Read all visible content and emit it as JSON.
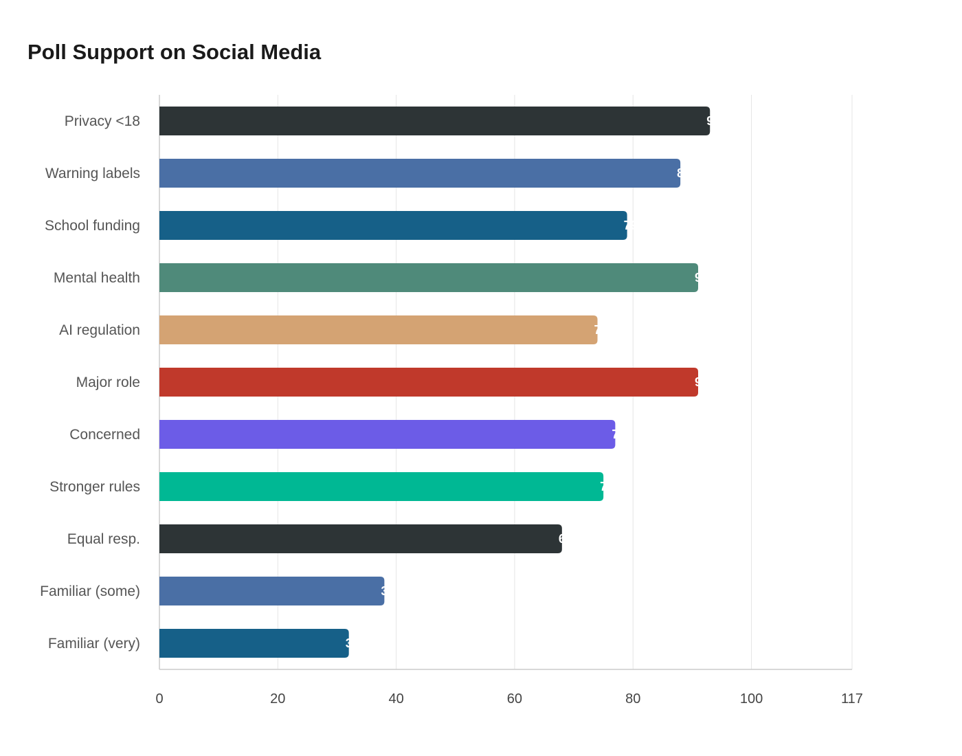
{
  "chart_data": {
    "type": "bar",
    "orientation": "horizontal",
    "title": "Poll Support on Social Media",
    "xlabel": "",
    "ylabel": "",
    "categories": [
      "Privacy <18",
      "Warning labels",
      "School funding",
      "Mental health",
      "AI regulation",
      "Major role",
      "Concerned",
      "Stronger rules",
      "Equal resp.",
      "Familiar (some)",
      "Familiar (very)"
    ],
    "values": [
      93,
      88,
      79,
      91,
      74,
      91,
      77,
      75,
      68,
      38,
      32
    ],
    "colors": [
      "#2d3436",
      "#4a6fa5",
      "#166088",
      "#4f8a7a",
      "#d4a373",
      "#c0392b",
      "#6c5ce7",
      "#00b894",
      "#2d3436",
      "#4a6fa5",
      "#166088"
    ],
    "xlim": [
      0,
      117
    ],
    "xticks": [
      0,
      20,
      40,
      60,
      80,
      100,
      117
    ],
    "grid": true
  }
}
